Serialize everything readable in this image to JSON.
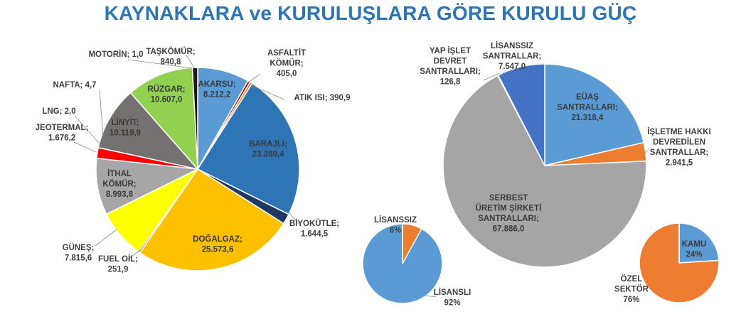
{
  "title": "KAYNAKLARA ve KURULUŞLARA GÖRE KURULU GÜÇ",
  "chart_data": [
    {
      "type": "pie",
      "name": "sources",
      "slices": [
        {
          "id": "akarsu",
          "label": "AKARSU;",
          "value_text": "8.212,2",
          "value": 8212.2,
          "color": "#5b9bd5"
        },
        {
          "id": "asfaltit",
          "label": "ASFALTİT KÖMÜR;",
          "value_text": "405,0",
          "value": 405.0,
          "color": "#c00000"
        },
        {
          "id": "atik-isi",
          "label": "ATIK ISI;",
          "value_text": "390,9",
          "value": 390.9,
          "color": "#ed7d31"
        },
        {
          "id": "barajli",
          "label": "BARAJLI;",
          "value_text": "23.280,4",
          "value": 23280.4,
          "color": "#2e75b6"
        },
        {
          "id": "biyokutle",
          "label": "BİYOKÜTLE;",
          "value_text": "1.644,5",
          "value": 1644.5,
          "color": "#1f3864"
        },
        {
          "id": "dogalgaz",
          "label": "DOĞALGAZ;",
          "value_text": "25.573,6",
          "value": 25573.6,
          "color": "#ffc000"
        },
        {
          "id": "fuel-oil",
          "label": "FUEL OİL;",
          "value_text": "251,9",
          "value": 251.9,
          "color": "#7b3f00"
        },
        {
          "id": "gunes",
          "label": "GÜNEŞ;",
          "value_text": "7.815,6",
          "value": 7815.6,
          "color": "#ffff00"
        },
        {
          "id": "ithal-komur",
          "label": "İTHAL KÖMÜR;",
          "value_text": "8.993,8",
          "value": 8993.8,
          "color": "#a6a6a6"
        },
        {
          "id": "jeotermal",
          "label": "JEOTERMAL;",
          "value_text": "1.676,2",
          "value": 1676.2,
          "color": "#ff0000"
        },
        {
          "id": "lng",
          "label": "LNG; 2,0",
          "value_text": "",
          "value": 2.0,
          "color": "#404040"
        },
        {
          "id": "linyit",
          "label": "LİNYİT;",
          "value_text": "10.119,9",
          "value": 10119.9,
          "color": "#757171"
        },
        {
          "id": "nafta",
          "label": "NAFTA; 4,7",
          "value_text": "",
          "value": 4.7,
          "color": "#595959"
        },
        {
          "id": "ruzgar",
          "label": "RÜZGAR;",
          "value_text": "10.607,0",
          "value": 10607.0,
          "color": "#92d050"
        },
        {
          "id": "motorin",
          "label": "MOTORİN; 1,0",
          "value_text": "",
          "value": 1.0,
          "color": "#000000"
        },
        {
          "id": "taskomur",
          "label": "TAŞKÖMÜR;",
          "value_text": "840,8",
          "value": 840.8,
          "color": "#1a1a1a"
        }
      ]
    },
    {
      "type": "pie",
      "name": "organizations",
      "slices": [
        {
          "id": "euas",
          "label": "EÜAŞ SANTRALLARI;",
          "value_text": "21.318,4",
          "value": 21318.4,
          "color": "#5b9bd5"
        },
        {
          "id": "isletme",
          "label": "İŞLETME HAKKI DEVREDİLEN SANTRALLAR;",
          "value_text": "2.941,5",
          "value": 2941.5,
          "color": "#ed7d31"
        },
        {
          "id": "serbest",
          "label": "SERBEST ÜRETİM ŞİRKETİ SANTRALLARI;",
          "value_text": "67.886,0",
          "value": 67886.0,
          "color": "#a5a5a5"
        },
        {
          "id": "yid",
          "label": "YAP İŞLET DEVRET SANTRALLARI;",
          "value_text": "126,8",
          "value": 126.8,
          "color": "#ffc000"
        },
        {
          "id": "lisanssiz",
          "label": "LİSANSSIZ SANTRALLAR;",
          "value_text": "7.547,0",
          "value": 7547.0,
          "color": "#4472c4"
        }
      ]
    },
    {
      "type": "pie",
      "name": "license",
      "slices": [
        {
          "id": "lisanssiz",
          "label": "LİSANSSIZ",
          "value_text": "8%",
          "value": 8,
          "color": "#ed7d31"
        },
        {
          "id": "lisansli",
          "label": "LİSANSLI",
          "value_text": "92%",
          "value": 92,
          "color": "#5b9bd5"
        }
      ]
    },
    {
      "type": "pie",
      "name": "ownership",
      "slices": [
        {
          "id": "kamu",
          "label": "KAMU",
          "value_text": "24%",
          "value": 24,
          "color": "#5b9bd5"
        },
        {
          "id": "ozel",
          "label": "ÖZEL SEKTÖR",
          "value_text": "76%",
          "value": 76,
          "color": "#ed7d31"
        }
      ]
    }
  ]
}
